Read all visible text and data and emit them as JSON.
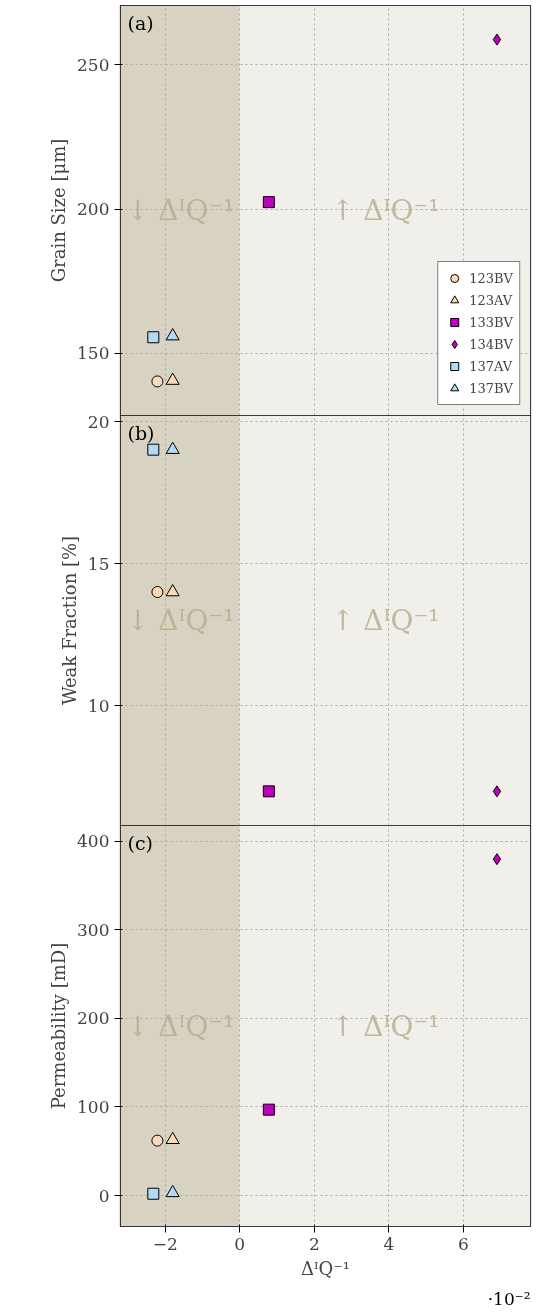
{
  "chart_data": [
    {
      "type": "scatter",
      "title": "(a)",
      "ylabel": "Grain Size [μm]",
      "xlim": [
        -3.2,
        7.8
      ],
      "xticks": [
        -2,
        0,
        2,
        4,
        6
      ],
      "ylim": [
        128.5,
        270.5
      ],
      "yticks": [
        150,
        200,
        250
      ],
      "grid": true,
      "legend": "bottom right",
      "tick_labels": "y",
      "bands": [
        {
          "axis": "x",
          "from": -3.2,
          "to": 0,
          "color": "#d8d2c2",
          "label": "↓ ΔᴵQ⁻¹"
        },
        {
          "axis": "x",
          "from": 0,
          "to": 7.8,
          "color": "#f0efea",
          "label": "↑ ΔᴵQ⁻¹"
        }
      ],
      "series": [
        {
          "name": "123BV",
          "color": "#fdd9b5",
          "marker": "circle",
          "x": [
            -2.21
          ],
          "values": [
            140.3
          ]
        },
        {
          "name": "123AV",
          "color": "#fdd9b5",
          "marker": "triangle",
          "x": [
            -1.8
          ],
          "values": [
            140.6
          ]
        },
        {
          "name": "133BV",
          "color": "#c000c0",
          "marker": "square",
          "x": [
            0.78
          ],
          "values": [
            202.4
          ]
        },
        {
          "name": "134BV",
          "color": "#c000c0",
          "marker": "diamond",
          "x": [
            6.9
          ],
          "values": [
            258.7
          ]
        },
        {
          "name": "137AV",
          "color": "#b3daf5",
          "marker": "square",
          "x": [
            -2.32
          ],
          "values": [
            155.6
          ]
        },
        {
          "name": "137BV",
          "color": "#b3daf5",
          "marker": "triangle",
          "x": [
            -1.8
          ],
          "values": [
            156
          ]
        }
      ]
    },
    {
      "type": "scatter",
      "title": "(b)",
      "ylabel": "Weak Fraction [%]",
      "xlim": [
        -3.2,
        7.8
      ],
      "xticks": [
        -2,
        0,
        2,
        4,
        6
      ],
      "ylim": [
        5.8,
        20.2
      ],
      "yticks": [
        10,
        15,
        20
      ],
      "grid": true,
      "tick_labels": "y",
      "bands": [
        {
          "axis": "x",
          "from": -3.2,
          "to": 0,
          "color": "#d8d2c2",
          "label": "↓ ΔᴵQ⁻¹"
        },
        {
          "axis": "x",
          "from": 0,
          "to": 7.8,
          "color": "#f0efea",
          "label": "↑ ΔᴵQ⁻¹"
        }
      ],
      "series": [
        {
          "color": "#fdd9b5",
          "marker": "circle",
          "x": [
            -2.21
          ],
          "values": [
            14
          ]
        },
        {
          "color": "#fdd9b5",
          "marker": "triangle",
          "x": [
            -1.8
          ],
          "values": [
            14
          ]
        },
        {
          "color": "#c000c0",
          "marker": "square",
          "x": [
            0.78
          ],
          "values": [
            7
          ]
        },
        {
          "color": "#c000c0",
          "marker": "diamond",
          "x": [
            6.9
          ],
          "values": [
            7
          ]
        },
        {
          "color": "#b3daf5",
          "marker": "square",
          "x": [
            -2.32
          ],
          "values": [
            19
          ]
        },
        {
          "color": "#b3daf5",
          "marker": "triangle",
          "x": [
            -1.8
          ],
          "values": [
            19
          ]
        }
      ]
    },
    {
      "type": "scatter",
      "title": "(c)",
      "ylabel": "Permeability [mD]",
      "xlabel": "ΔᴵQ⁻¹",
      "xlim": [
        -3.2,
        7.8
      ],
      "xticks": [
        -2,
        0,
        2,
        4,
        6
      ],
      "ylim": [
        -35,
        418
      ],
      "yticks": [
        0,
        100,
        200,
        300,
        400
      ],
      "grid": true,
      "annotations": [
        "·10⁻²"
      ],
      "bands": [
        {
          "axis": "x",
          "from": -3.2,
          "to": 0,
          "color": "#d8d2c2",
          "label": "↓ ΔᴵQ⁻¹"
        },
        {
          "axis": "x",
          "from": 0,
          "to": 7.8,
          "color": "#f0efea",
          "label": "↑ ΔᴵQ⁻¹"
        }
      ],
      "series": [
        {
          "color": "#fdd9b5",
          "marker": "circle",
          "x": [
            -2.21
          ],
          "values": [
            62
          ]
        },
        {
          "color": "#fdd9b5",
          "marker": "triangle",
          "x": [
            -1.8
          ],
          "values": [
            63
          ]
        },
        {
          "color": "#c000c0",
          "marker": "square",
          "x": [
            0.78
          ],
          "values": [
            97
          ]
        },
        {
          "color": "#c000c0",
          "marker": "diamond",
          "x": [
            6.9
          ],
          "values": [
            380
          ]
        },
        {
          "color": "#b3daf5",
          "marker": "square",
          "x": [
            -2.32
          ],
          "values": [
            2
          ]
        },
        {
          "color": "#b3daf5",
          "marker": "triangle",
          "x": [
            -1.8
          ],
          "values": [
            3
          ]
        }
      ]
    }
  ]
}
